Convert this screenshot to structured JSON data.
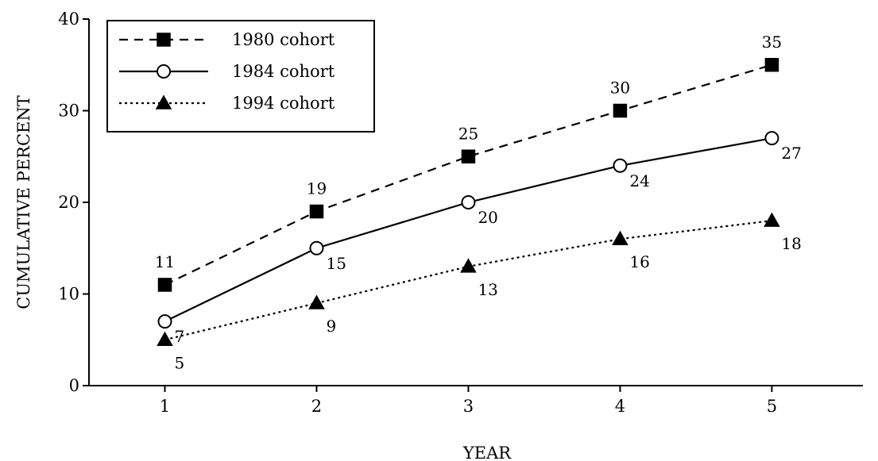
{
  "chart_data": {
    "type": "line",
    "xlabel": "YEAR",
    "ylabel": "CUMULATIVE PERCENT",
    "x": [
      1,
      2,
      3,
      4,
      5
    ],
    "x_ticks": [
      "1",
      "2",
      "3",
      "4",
      "5"
    ],
    "xlim": [
      0.5,
      5.6
    ],
    "ylim": [
      0,
      40
    ],
    "y_ticks": [
      "0",
      "10",
      "20",
      "30",
      "40"
    ],
    "grid": false,
    "legend": {
      "position": "top-left",
      "frame": true
    },
    "series": [
      {
        "name": "1980 cohort",
        "values": [
          11,
          19,
          25,
          30,
          35
        ],
        "marker": "filled-square",
        "line_style": "dashed",
        "color": "#000000"
      },
      {
        "name": "1984 cohort",
        "values": [
          7,
          15,
          20,
          24,
          27
        ],
        "marker": "open-circle",
        "line_style": "solid",
        "color": "#000000"
      },
      {
        "name": "1994 cohort",
        "values": [
          5,
          9,
          13,
          16,
          18
        ],
        "marker": "filled-triangle",
        "line_style": "dotted",
        "color": "#000000"
      }
    ]
  }
}
